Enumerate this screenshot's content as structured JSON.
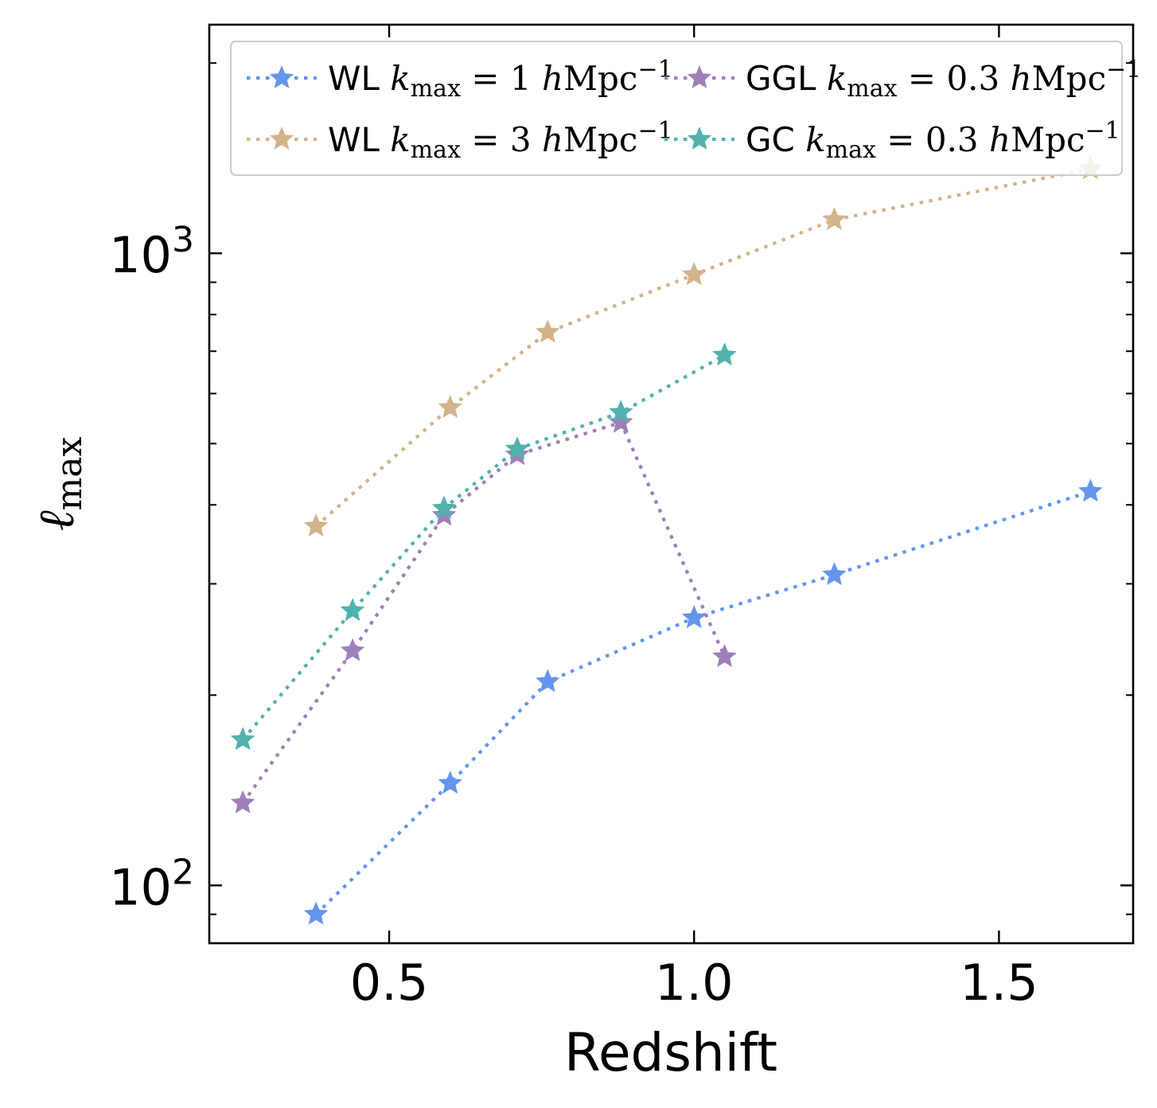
{
  "chart_data": {
    "type": "line",
    "xlabel": "Redshift",
    "ylabel_symbol": "ℓ",
    "ylabel_sub": "max",
    "yscale": "log",
    "xlim": [
      0.205,
      1.72
    ],
    "ylim": [
      81,
      2300
    ],
    "x_ticks": [
      0.5,
      1.0,
      1.5
    ],
    "x_tick_labels": [
      "0.5",
      "1.0",
      "1.5"
    ],
    "y_tick_labels": [
      {
        "value": 100,
        "base": "10",
        "exp": "2"
      },
      {
        "value": 1000,
        "base": "10",
        "exp": "3"
      }
    ],
    "legend_placement": "top",
    "series": [
      {
        "name": "WL",
        "k_label": "k",
        "k_sub": "max",
        "k_value": "1",
        "unit": "Mpc",
        "unit_exp": "−1",
        "color": "#6495ED",
        "x": [
          0.38,
          0.6,
          0.76,
          1.0,
          1.23,
          1.65
        ],
        "y": [
          90,
          145,
          210,
          265,
          310,
          420
        ]
      },
      {
        "name": "WL",
        "k_label": "k",
        "k_sub": "max",
        "k_value": "3",
        "unit": "Mpc",
        "unit_exp": "−1",
        "color": "#D2B48C",
        "x": [
          0.38,
          0.6,
          0.76,
          1.0,
          1.23,
          1.65
        ],
        "y": [
          370,
          570,
          750,
          925,
          1130,
          1360
        ]
      },
      {
        "name": "GGL",
        "k_label": "k",
        "k_sub": "max",
        "k_value": "0.3",
        "unit": "Mpc",
        "unit_exp": "−1",
        "color": "#9F7FBA",
        "x": [
          0.26,
          0.44,
          0.59,
          0.71,
          0.88,
          1.05
        ],
        "y": [
          135,
          235,
          385,
          480,
          540,
          230
        ]
      },
      {
        "name": "GC",
        "k_label": "k",
        "k_sub": "max",
        "k_value": "0.3",
        "unit": "Mpc",
        "unit_exp": "−1",
        "color": "#52B2AC",
        "x": [
          0.26,
          0.44,
          0.59,
          0.71,
          0.88,
          1.05
        ],
        "y": [
          170,
          272,
          395,
          490,
          560,
          690
        ]
      }
    ]
  }
}
